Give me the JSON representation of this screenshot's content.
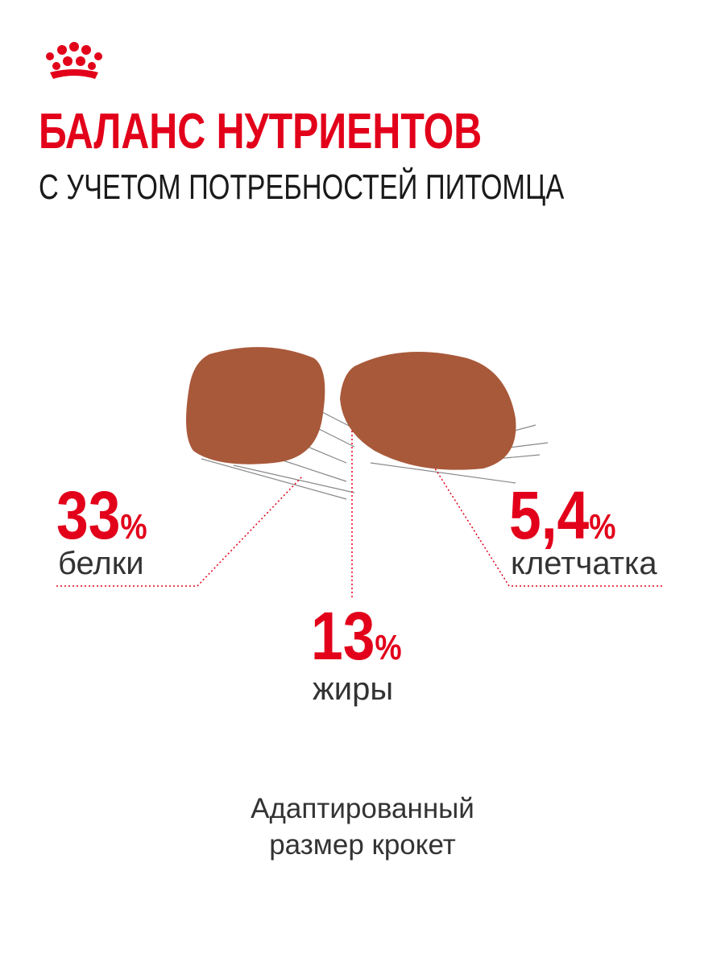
{
  "header": {
    "title": "БАЛАНС НУТРИЕНТОВ",
    "subtitle": "С УЧЕТОМ ПОТРЕБНОСТЕЙ ПИТОМЦА"
  },
  "nutrients": [
    {
      "value": "33",
      "unit": "%",
      "label": "белки"
    },
    {
      "value": "13",
      "unit": "%",
      "label": "жиры"
    },
    {
      "value": "5,4",
      "unit": "%",
      "label": "клетчатка"
    }
  ],
  "footer": {
    "lines": [
      "Адаптированный",
      "размер крокет"
    ]
  }
}
